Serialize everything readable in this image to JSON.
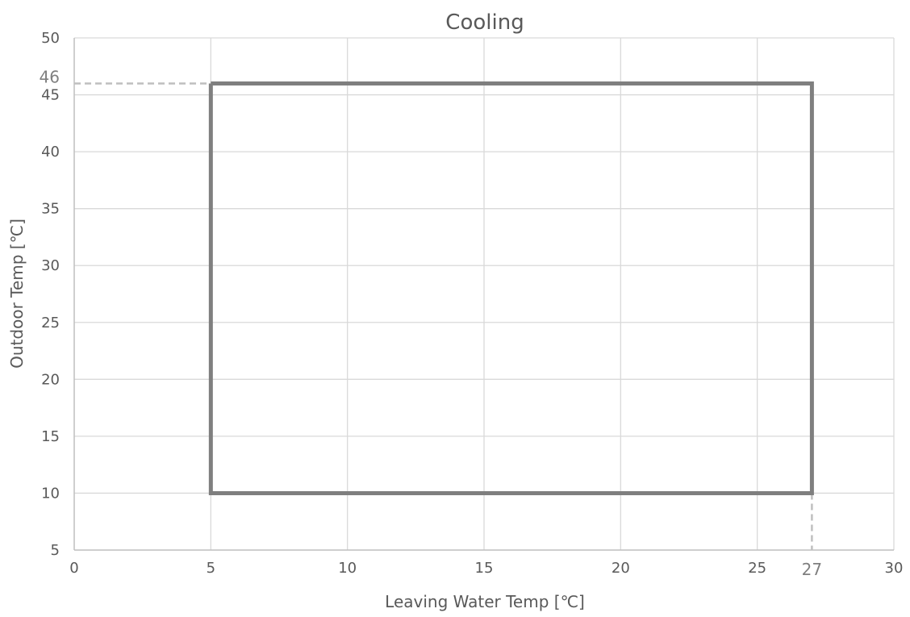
{
  "chart_data": {
    "type": "line",
    "title": "Cooling",
    "xlabel": "Leaving Water Temp [℃]",
    "ylabel": "Outdoor Temp [℃]",
    "xlim": [
      0,
      30
    ],
    "ylim": [
      5,
      50
    ],
    "x_ticks": [
      0,
      5,
      10,
      15,
      20,
      25,
      30
    ],
    "y_ticks": [
      5,
      10,
      15,
      20,
      25,
      30,
      35,
      40,
      45,
      50
    ],
    "grid": true,
    "legend": "none",
    "series": [
      {
        "x": [
          5,
          27,
          27,
          5,
          5
        ],
        "y": [
          46,
          46,
          10,
          10,
          46
        ],
        "color": "#7f7f7f",
        "style": "solid"
      }
    ],
    "annotations": [
      {
        "label": "46",
        "axis": "y",
        "value": 46,
        "guide_from": [
          0,
          46
        ],
        "guide_to": [
          5,
          46
        ],
        "style": "dashed"
      },
      {
        "label": "27",
        "axis": "x",
        "value": 27,
        "guide_from": [
          27,
          10
        ],
        "guide_to": [
          27,
          5
        ],
        "style": "dashed"
      }
    ],
    "colors": {
      "grid": "#d9d9d9",
      "axis": "#bfbfbf",
      "series": "#7f7f7f",
      "guide": "#bfbfbf",
      "text": "#595959"
    }
  }
}
